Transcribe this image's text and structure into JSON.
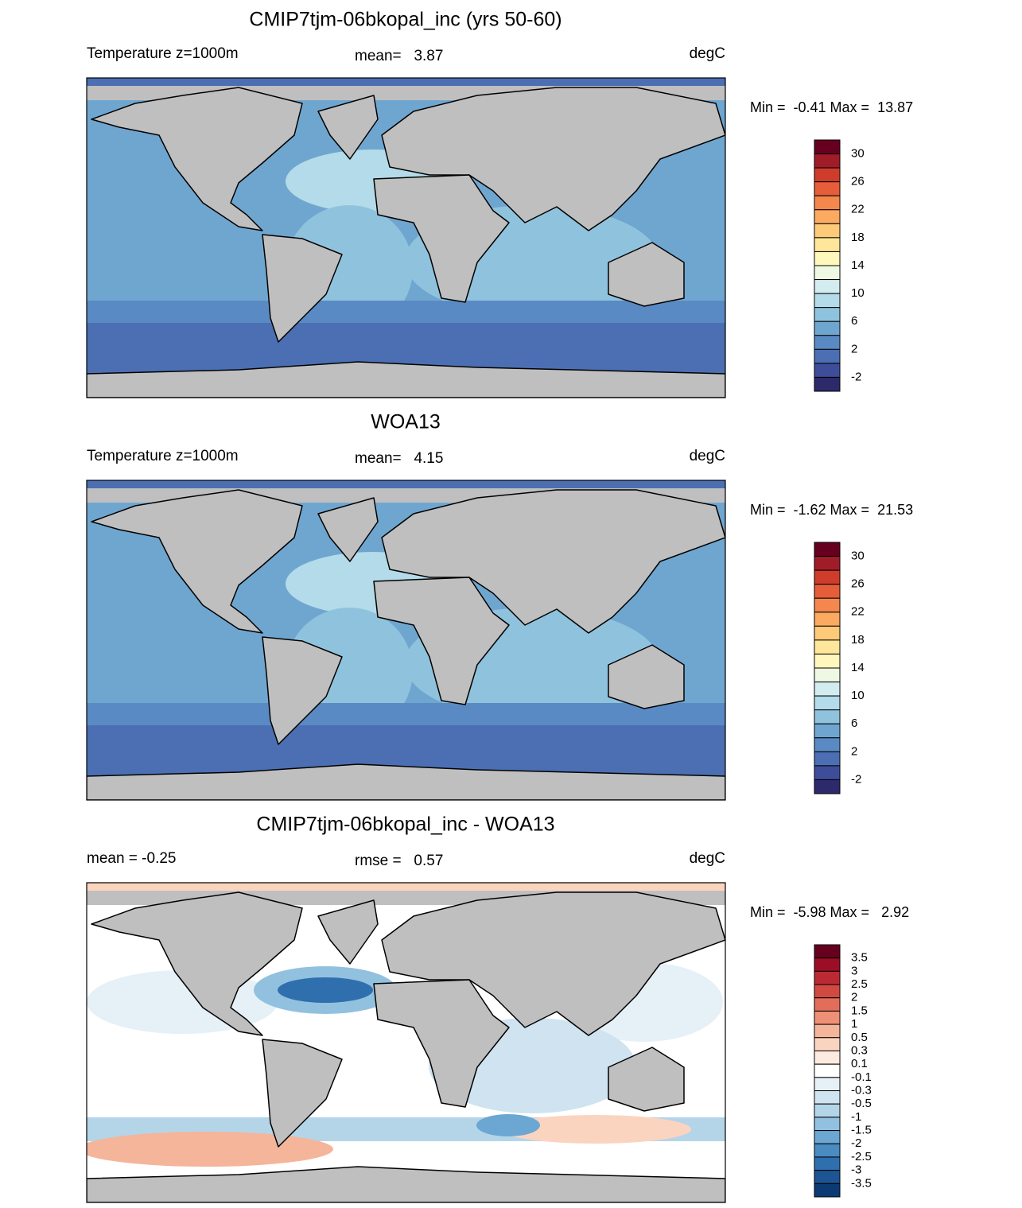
{
  "panels": [
    {
      "title": "CMIP7tjm-06bkopal_inc (yrs 50-60)",
      "left": "Temperature z=1000m",
      "center": "mean=   3.87",
      "right": "degC",
      "minmax": "Min =  -0.41 Max =  13.87",
      "colorbar": {
        "labels": [
          30,
          26,
          22,
          18,
          14,
          10,
          6,
          2,
          -2
        ],
        "colors": [
          "#67001f",
          "#a11c29",
          "#cf3c2c",
          "#e65d3a",
          "#f4874d",
          "#fbaa60",
          "#fdca7a",
          "#fee69a",
          "#fff7bc",
          "#eef8e2",
          "#d3ecef",
          "#b3dbe9",
          "#8fc3dd",
          "#6fa6d0",
          "#5a8ac4",
          "#4b6fb2",
          "#3e4d99",
          "#2c2a6a"
        ]
      }
    },
    {
      "title": "WOA13",
      "left": "Temperature z=1000m",
      "center": "mean=   4.15",
      "right": "degC",
      "minmax": "Min =  -1.62 Max =  21.53",
      "colorbar": {
        "labels": [
          30,
          26,
          22,
          18,
          14,
          10,
          6,
          2,
          -2
        ],
        "colors": [
          "#67001f",
          "#a11c29",
          "#cf3c2c",
          "#e65d3a",
          "#f4874d",
          "#fbaa60",
          "#fdca7a",
          "#fee69a",
          "#fff7bc",
          "#eef8e2",
          "#d3ecef",
          "#b3dbe9",
          "#8fc3dd",
          "#6fa6d0",
          "#5a8ac4",
          "#4b6fb2",
          "#3e4d99",
          "#2c2a6a"
        ]
      }
    },
    {
      "title": "CMIP7tjm-06bkopal_inc - WOA13",
      "left": "mean =  -0.25",
      "center": "rmse =   0.57",
      "right": "degC",
      "minmax": "Min =  -5.98 Max =   2.92",
      "colorbar": {
        "labels": [
          3.5,
          3,
          2.5,
          2,
          1.5,
          1,
          0.5,
          0.3,
          0.1,
          -0.1,
          -0.3,
          -0.5,
          -1,
          -1.5,
          -2,
          -2.5,
          -3,
          -3.5
        ],
        "colors": [
          "#67001f",
          "#9b0e26",
          "#bb2a33",
          "#d14a42",
          "#e26d58",
          "#ee9076",
          "#f5b59a",
          "#fbd4c0",
          "#fdebe0",
          "#ffffff",
          "#e6f0f7",
          "#cfe3f0",
          "#b4d5e8",
          "#92c1df",
          "#6ba7d2",
          "#4a8bc2",
          "#2f6fae",
          "#1c5494",
          "#0c3a74"
        ]
      }
    }
  ]
}
